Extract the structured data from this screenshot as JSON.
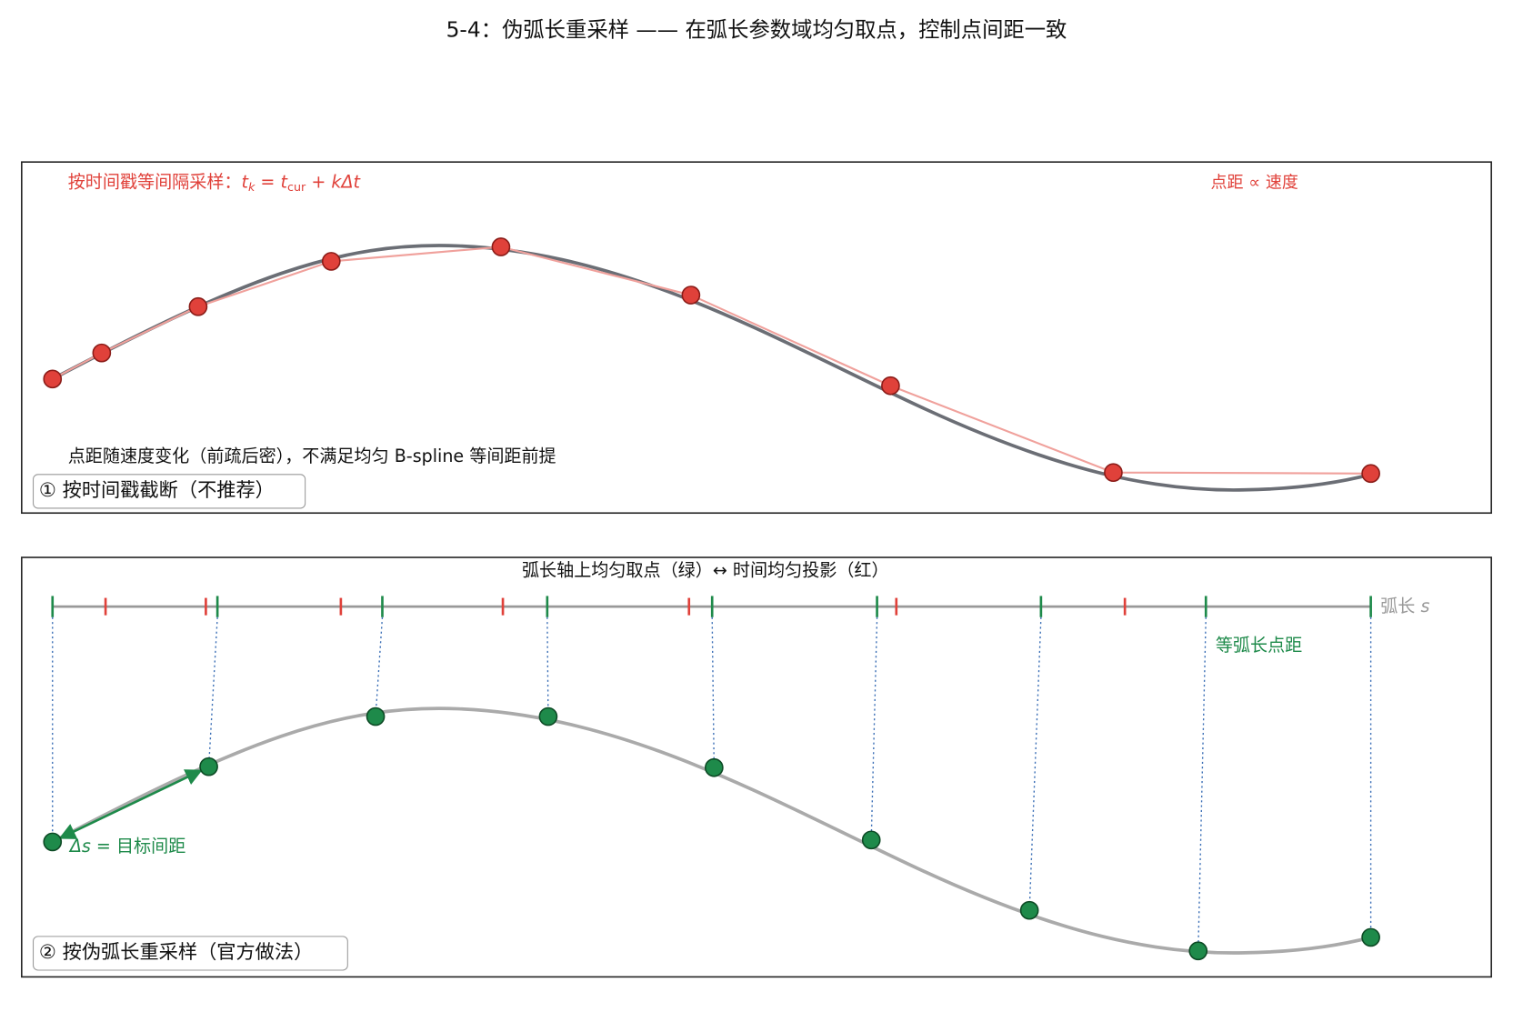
{
  "header": {
    "title": "5-4：伪弧长重采样 —— 在弧长参数域均匀取点，控制点间距一致"
  },
  "panel1": {
    "formula": {
      "prefix": "按时间戳等间隔采样：",
      "t1": "t",
      "sub1": "k",
      "eq": " = ",
      "t2": "t",
      "sub2": "cur",
      "plus": " + ",
      "tail": "kΔt"
    },
    "note_right": "点距 ∝ 速度",
    "note_bottom": "点距随速度变化（前疏后密），不满足均匀 B-spline 等间距前提",
    "label": "① 按时间戳截断（不推荐）"
  },
  "panel2": {
    "axis_title": "弧长轴上均匀取点（绿）↔ 时间均匀投影（红）",
    "axis_label": {
      "text": "弧长 ",
      "var": "s"
    },
    "spacing_note": "等弧长点距",
    "delta": {
      "var": "Δs",
      "text": " = 目标间距"
    },
    "label": "② 按伪弧长重采样（官方做法）"
  }
}
